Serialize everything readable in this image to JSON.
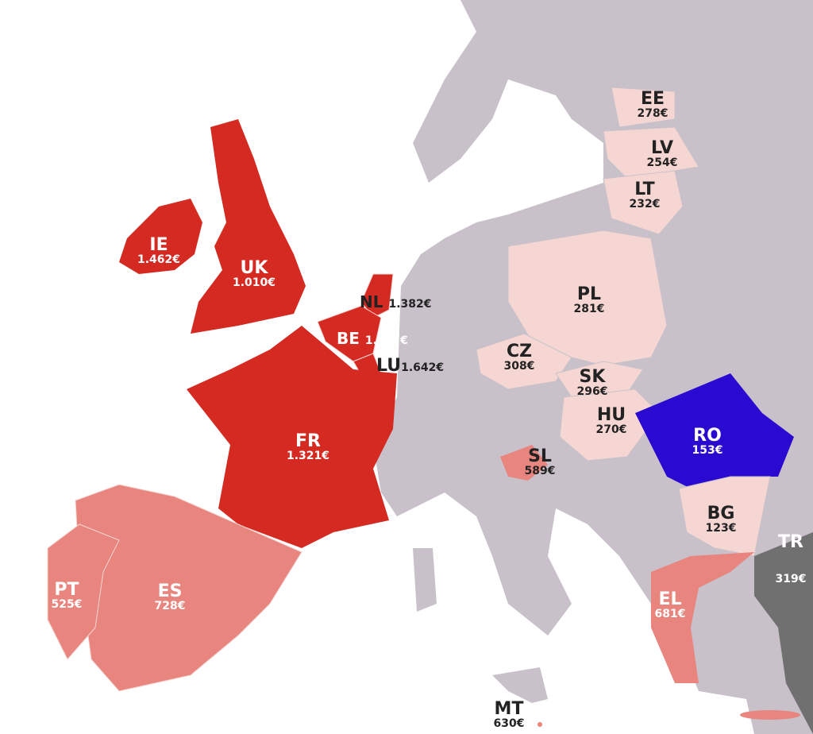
{
  "colors": {
    "sea": "#ffffff",
    "other_land": "#c9c1ca",
    "high": "#d42a22",
    "mid": "#e8857e",
    "low": "#f5d6d2",
    "lowest": "#2a0ad0",
    "non_eu": "#707070"
  },
  "countries": {
    "IE": {
      "code": "IE",
      "value": "1.462€",
      "tier": "high"
    },
    "UK": {
      "code": "UK",
      "value": "1.010€",
      "tier": "high"
    },
    "NL": {
      "code": "NL",
      "value": "1.382€",
      "tier": "high"
    },
    "BE": {
      "code": "BE",
      "value": "1.387€",
      "tier": "high"
    },
    "LU": {
      "code": "LU",
      "value": "1.642€",
      "tier": "high"
    },
    "FR": {
      "code": "FR",
      "value": "1.321€",
      "tier": "high"
    },
    "ES": {
      "code": "ES",
      "value": "728€",
      "tier": "mid"
    },
    "PT": {
      "code": "PT",
      "value": "525€",
      "tier": "mid"
    },
    "SL": {
      "code": "SL",
      "value": "589€",
      "tier": "mid"
    },
    "EL": {
      "code": "EL",
      "value": "681€",
      "tier": "mid"
    },
    "MT": {
      "code": "MT",
      "value": "630€",
      "tier": "mid"
    },
    "EE": {
      "code": "EE",
      "value": "278€",
      "tier": "low"
    },
    "LV": {
      "code": "LV",
      "value": "254€",
      "tier": "low"
    },
    "LT": {
      "code": "LT",
      "value": "232€",
      "tier": "low"
    },
    "PL": {
      "code": "PL",
      "value": "281€",
      "tier": "low"
    },
    "CZ": {
      "code": "CZ",
      "value": "308€",
      "tier": "low"
    },
    "SK": {
      "code": "SK",
      "value": "296€",
      "tier": "low"
    },
    "HU": {
      "code": "HU",
      "value": "270€",
      "tier": "low"
    },
    "BG": {
      "code": "BG",
      "value": "123€",
      "tier": "low"
    },
    "RO": {
      "code": "RO",
      "value": "153€",
      "tier": "lowest"
    },
    "TR": {
      "code": "TR",
      "value": "319€",
      "tier": "non_eu"
    }
  }
}
